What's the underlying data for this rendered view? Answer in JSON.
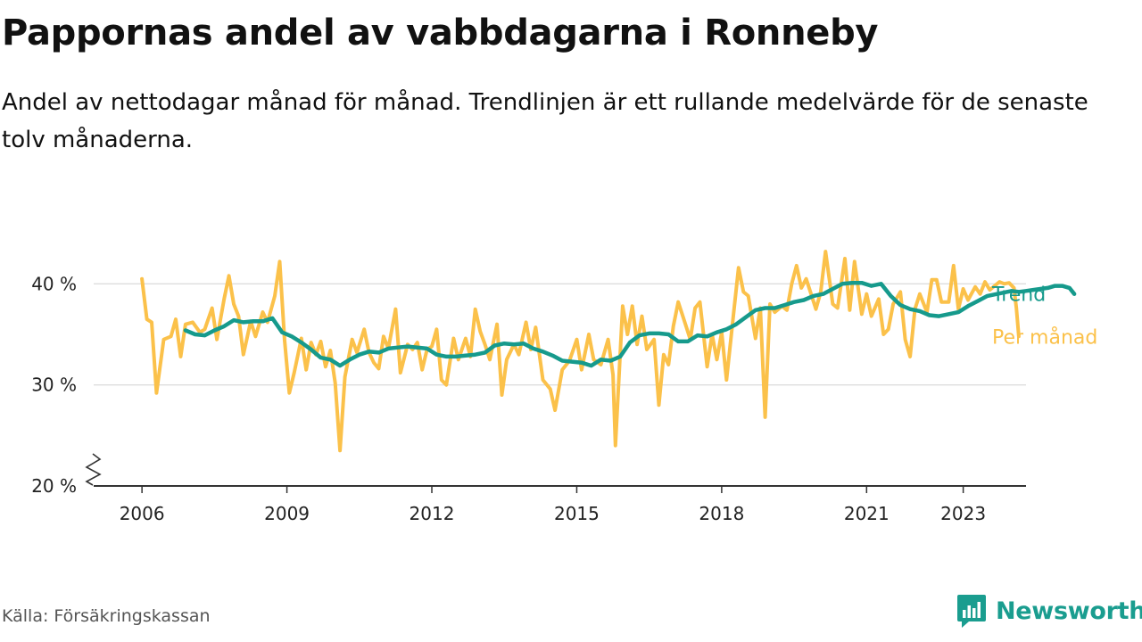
{
  "title": "Pappornas andel av vabbdagarna i Ronneby",
  "subtitle": "Andel av nettodagar månad för månad. Trendlinjen är ett rullande medelvärde för de senaste tolv månaderna.",
  "source": "Källa: Försäkringskassan",
  "brand": {
    "name": "Newsworthy",
    "icon": "newsworthy-logo-icon"
  },
  "colors": {
    "monthly": "#fbc14a",
    "trend": "#169a8c",
    "grid": "#dddddd",
    "axis": "#333333"
  },
  "chart_data": {
    "type": "line",
    "title": "Pappornas andel av vabbdagarna i Ronneby",
    "xlabel": "",
    "ylabel": "",
    "ylim": [
      20,
      44
    ],
    "xlim": [
      2005.0,
      2024.3
    ],
    "y_ticks": [
      20,
      30,
      40
    ],
    "y_tick_labels": [
      "20 %",
      "30 %",
      "40 %"
    ],
    "x_ticks": [
      2006,
      2009,
      2012,
      2015,
      2018,
      2021,
      2023
    ],
    "x_tick_labels": [
      "2006",
      "2009",
      "2012",
      "2015",
      "2018",
      "2021",
      "2023"
    ],
    "y_axis_break": true,
    "grid": true,
    "series": [
      {
        "name": "Per månad",
        "color": "#fbc14a",
        "points": [
          [
            2006.0,
            40.5
          ],
          [
            2006.1,
            36.5
          ],
          [
            2006.2,
            36.2
          ],
          [
            2006.3,
            29.2
          ],
          [
            2006.45,
            34.5
          ],
          [
            2006.6,
            34.8
          ],
          [
            2006.7,
            36.5
          ],
          [
            2006.8,
            32.8
          ],
          [
            2006.9,
            36.0
          ],
          [
            2007.05,
            36.2
          ],
          [
            2007.2,
            35.2
          ],
          [
            2007.3,
            35.5
          ],
          [
            2007.45,
            37.6
          ],
          [
            2007.55,
            34.5
          ],
          [
            2007.7,
            38.5
          ],
          [
            2007.8,
            40.8
          ],
          [
            2007.9,
            38.0
          ],
          [
            2008.0,
            36.8
          ],
          [
            2008.1,
            33.0
          ],
          [
            2008.25,
            36.3
          ],
          [
            2008.35,
            34.8
          ],
          [
            2008.5,
            37.2
          ],
          [
            2008.6,
            36.2
          ],
          [
            2008.75,
            38.8
          ],
          [
            2008.85,
            42.2
          ],
          [
            2008.95,
            34.5
          ],
          [
            2009.05,
            29.2
          ],
          [
            2009.15,
            31.2
          ],
          [
            2009.3,
            34.6
          ],
          [
            2009.4,
            31.5
          ],
          [
            2009.5,
            34.2
          ],
          [
            2009.6,
            33.0
          ],
          [
            2009.7,
            34.3
          ],
          [
            2009.8,
            31.8
          ],
          [
            2009.9,
            33.4
          ],
          [
            2010.0,
            30.2
          ],
          [
            2010.1,
            23.5
          ],
          [
            2010.2,
            30.8
          ],
          [
            2010.35,
            34.5
          ],
          [
            2010.45,
            33.2
          ],
          [
            2010.6,
            35.5
          ],
          [
            2010.7,
            33.2
          ],
          [
            2010.8,
            32.2
          ],
          [
            2010.9,
            31.6
          ],
          [
            2011.0,
            34.8
          ],
          [
            2011.1,
            33.6
          ],
          [
            2011.25,
            37.5
          ],
          [
            2011.35,
            31.2
          ],
          [
            2011.5,
            34.0
          ],
          [
            2011.6,
            33.5
          ],
          [
            2011.7,
            34.2
          ],
          [
            2011.8,
            31.5
          ],
          [
            2011.9,
            33.5
          ],
          [
            2012.0,
            33.8
          ],
          [
            2012.1,
            35.5
          ],
          [
            2012.2,
            30.5
          ],
          [
            2012.3,
            30.0
          ],
          [
            2012.45,
            34.6
          ],
          [
            2012.55,
            32.5
          ],
          [
            2012.7,
            34.6
          ],
          [
            2012.8,
            32.8
          ],
          [
            2012.9,
            37.5
          ],
          [
            2013.0,
            35.3
          ],
          [
            2013.1,
            34.0
          ],
          [
            2013.2,
            32.5
          ],
          [
            2013.35,
            36.0
          ],
          [
            2013.45,
            29.0
          ],
          [
            2013.55,
            32.5
          ],
          [
            2013.7,
            34.0
          ],
          [
            2013.8,
            33.0
          ],
          [
            2013.95,
            36.2
          ],
          [
            2014.05,
            33.5
          ],
          [
            2014.15,
            35.7
          ],
          [
            2014.3,
            30.5
          ],
          [
            2014.45,
            29.6
          ],
          [
            2014.55,
            27.5
          ],
          [
            2014.7,
            31.5
          ],
          [
            2014.85,
            32.4
          ],
          [
            2015.0,
            34.5
          ],
          [
            2015.1,
            31.5
          ],
          [
            2015.25,
            35.0
          ],
          [
            2015.35,
            32.5
          ],
          [
            2015.5,
            32.0
          ],
          [
            2015.65,
            34.5
          ],
          [
            2015.75,
            31.0
          ],
          [
            2015.8,
            24.0
          ],
          [
            2015.95,
            37.8
          ],
          [
            2016.05,
            35.0
          ],
          [
            2016.15,
            37.8
          ],
          [
            2016.25,
            34.0
          ],
          [
            2016.35,
            36.8
          ],
          [
            2016.45,
            33.5
          ],
          [
            2016.6,
            34.5
          ],
          [
            2016.7,
            28.0
          ],
          [
            2016.8,
            33.0
          ],
          [
            2016.9,
            32.0
          ],
          [
            2017.0,
            35.8
          ],
          [
            2017.1,
            38.2
          ],
          [
            2017.25,
            36.0
          ],
          [
            2017.35,
            34.5
          ],
          [
            2017.45,
            37.6
          ],
          [
            2017.55,
            38.2
          ],
          [
            2017.7,
            31.8
          ],
          [
            2017.8,
            35.0
          ],
          [
            2017.9,
            32.5
          ],
          [
            2018.0,
            35.2
          ],
          [
            2018.1,
            30.5
          ],
          [
            2018.25,
            37.2
          ],
          [
            2018.35,
            41.6
          ],
          [
            2018.45,
            39.2
          ],
          [
            2018.55,
            38.8
          ],
          [
            2018.7,
            34.6
          ],
          [
            2018.8,
            37.6
          ],
          [
            2018.9,
            26.8
          ],
          [
            2019.0,
            38.0
          ],
          [
            2019.1,
            37.2
          ],
          [
            2019.25,
            37.8
          ],
          [
            2019.35,
            37.4
          ],
          [
            2019.45,
            40.0
          ],
          [
            2019.55,
            41.8
          ],
          [
            2019.65,
            39.6
          ],
          [
            2019.75,
            40.5
          ],
          [
            2019.85,
            39.0
          ],
          [
            2019.95,
            37.5
          ],
          [
            2020.05,
            39.2
          ],
          [
            2020.15,
            43.2
          ],
          [
            2020.3,
            38.0
          ],
          [
            2020.4,
            37.6
          ],
          [
            2020.55,
            42.5
          ],
          [
            2020.65,
            37.4
          ],
          [
            2020.75,
            42.2
          ],
          [
            2020.9,
            37.0
          ],
          [
            2021.0,
            39.0
          ],
          [
            2021.1,
            36.8
          ],
          [
            2021.25,
            38.5
          ],
          [
            2021.35,
            35.0
          ],
          [
            2021.45,
            35.5
          ],
          [
            2021.55,
            38.0
          ],
          [
            2021.7,
            39.2
          ],
          [
            2021.8,
            34.5
          ],
          [
            2021.9,
            32.8
          ],
          [
            2022.0,
            37.5
          ],
          [
            2022.1,
            39.0
          ],
          [
            2022.25,
            37.2
          ],
          [
            2022.35,
            40.4
          ],
          [
            2022.45,
            40.4
          ],
          [
            2022.55,
            38.2
          ],
          [
            2022.7,
            38.2
          ],
          [
            2022.8,
            41.8
          ],
          [
            2022.9,
            37.5
          ],
          [
            2023.0,
            39.5
          ],
          [
            2023.1,
            38.4
          ],
          [
            2023.25,
            39.7
          ],
          [
            2023.35,
            39.0
          ],
          [
            2023.45,
            40.2
          ],
          [
            2023.55,
            39.4
          ],
          [
            2023.65,
            39.8
          ],
          [
            2023.75,
            40.2
          ],
          [
            2023.85,
            40.0
          ],
          [
            2023.95,
            40.1
          ],
          [
            2024.05,
            39.6
          ],
          [
            2024.1,
            37.6
          ],
          [
            2024.15,
            34.8
          ]
        ]
      },
      {
        "name": "Trend",
        "color": "#169a8c",
        "points": [
          [
            2006.9,
            35.4
          ],
          [
            2007.1,
            35.0
          ],
          [
            2007.3,
            34.9
          ],
          [
            2007.5,
            35.4
          ],
          [
            2007.7,
            35.8
          ],
          [
            2007.9,
            36.4
          ],
          [
            2008.1,
            36.2
          ],
          [
            2008.3,
            36.3
          ],
          [
            2008.5,
            36.3
          ],
          [
            2008.7,
            36.6
          ],
          [
            2008.9,
            35.2
          ],
          [
            2009.1,
            34.8
          ],
          [
            2009.3,
            34.2
          ],
          [
            2009.5,
            33.5
          ],
          [
            2009.7,
            32.7
          ],
          [
            2009.9,
            32.5
          ],
          [
            2010.1,
            31.9
          ],
          [
            2010.3,
            32.5
          ],
          [
            2010.5,
            33.0
          ],
          [
            2010.7,
            33.3
          ],
          [
            2010.9,
            33.2
          ],
          [
            2011.1,
            33.6
          ],
          [
            2011.3,
            33.7
          ],
          [
            2011.5,
            33.8
          ],
          [
            2011.7,
            33.7
          ],
          [
            2011.9,
            33.6
          ],
          [
            2012.1,
            33.0
          ],
          [
            2012.3,
            32.8
          ],
          [
            2012.5,
            32.8
          ],
          [
            2012.7,
            32.9
          ],
          [
            2012.9,
            33.0
          ],
          [
            2013.1,
            33.2
          ],
          [
            2013.3,
            33.9
          ],
          [
            2013.5,
            34.1
          ],
          [
            2013.7,
            34.0
          ],
          [
            2013.9,
            34.1
          ],
          [
            2014.1,
            33.6
          ],
          [
            2014.3,
            33.3
          ],
          [
            2014.5,
            32.9
          ],
          [
            2014.7,
            32.4
          ],
          [
            2014.9,
            32.3
          ],
          [
            2015.1,
            32.2
          ],
          [
            2015.3,
            31.9
          ],
          [
            2015.5,
            32.5
          ],
          [
            2015.7,
            32.4
          ],
          [
            2015.9,
            32.8
          ],
          [
            2016.1,
            34.2
          ],
          [
            2016.3,
            34.9
          ],
          [
            2016.5,
            35.1
          ],
          [
            2016.7,
            35.1
          ],
          [
            2016.9,
            35.0
          ],
          [
            2017.1,
            34.3
          ],
          [
            2017.3,
            34.3
          ],
          [
            2017.5,
            34.9
          ],
          [
            2017.7,
            34.8
          ],
          [
            2017.9,
            35.2
          ],
          [
            2018.1,
            35.5
          ],
          [
            2018.3,
            36.0
          ],
          [
            2018.5,
            36.7
          ],
          [
            2018.7,
            37.4
          ],
          [
            2018.9,
            37.6
          ],
          [
            2019.1,
            37.6
          ],
          [
            2019.3,
            37.9
          ],
          [
            2019.5,
            38.2
          ],
          [
            2019.7,
            38.4
          ],
          [
            2019.9,
            38.8
          ],
          [
            2020.1,
            39.0
          ],
          [
            2020.3,
            39.5
          ],
          [
            2020.5,
            40.0
          ],
          [
            2020.7,
            40.1
          ],
          [
            2020.9,
            40.1
          ],
          [
            2021.1,
            39.8
          ],
          [
            2021.3,
            40.0
          ],
          [
            2021.5,
            38.8
          ],
          [
            2021.7,
            37.9
          ],
          [
            2021.9,
            37.5
          ],
          [
            2022.1,
            37.3
          ],
          [
            2022.3,
            36.9
          ],
          [
            2022.5,
            36.8
          ],
          [
            2022.7,
            37.0
          ],
          [
            2022.9,
            37.2
          ],
          [
            2023.1,
            37.8
          ],
          [
            2023.3,
            38.3
          ],
          [
            2023.5,
            38.8
          ],
          [
            2023.7,
            39.0
          ],
          [
            2023.9,
            39.2
          ],
          [
            2024.0,
            39.3
          ],
          [
            2024.15,
            39.2
          ],
          [
            2024.3,
            39.3
          ],
          [
            2024.45,
            39.4
          ],
          [
            2024.6,
            39.5
          ],
          [
            2024.75,
            39.6
          ],
          [
            2024.9,
            39.8
          ],
          [
            2025.05,
            39.8
          ],
          [
            2025.2,
            39.6
          ],
          [
            2025.3,
            39.0
          ]
        ]
      }
    ]
  }
}
